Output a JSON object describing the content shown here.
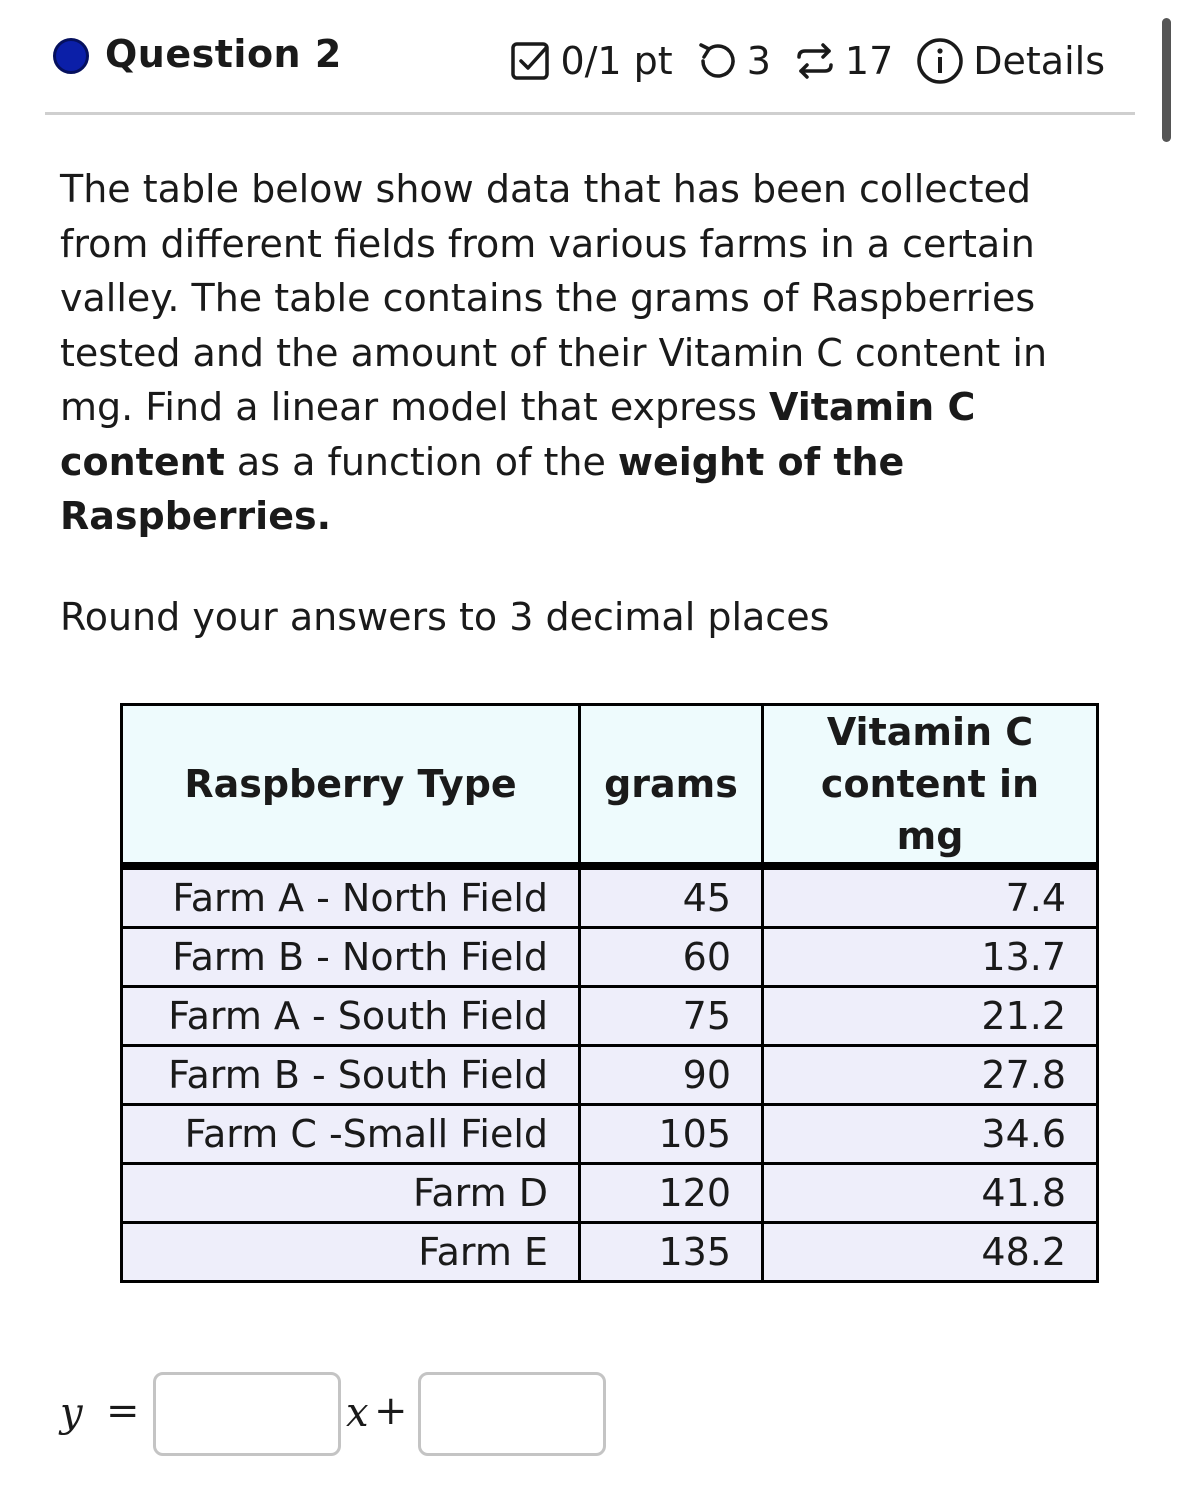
{
  "header": {
    "question_title": "Question 2",
    "points": "0/1 pt",
    "attempts": "3",
    "versions": "17",
    "details_label": "Details",
    "status_color": "#0b1fa8"
  },
  "prompt": {
    "part1": "The table below show data that has been collected from different fields from various farms in a certain valley. The table contains the grams of Raspberries tested and the amount of their Vitamin C content in mg. Find a linear model that express ",
    "bold1": "Vitamin C content",
    "part2": " as a function of the ",
    "bold2": "weight of the Raspberries.",
    "round_note": "Round your answers to 3 decimal places"
  },
  "table": {
    "headers": [
      "Raspberry Type",
      "grams",
      "Vitamin C content in mg"
    ],
    "rows": [
      {
        "type": "Farm A - North Field",
        "grams": "45",
        "vitc": "7.4"
      },
      {
        "type": "Farm B - North Field",
        "grams": "60",
        "vitc": "13.7"
      },
      {
        "type": "Farm A - South Field",
        "grams": "75",
        "vitc": "21.2"
      },
      {
        "type": "Farm B - South Field",
        "grams": "90",
        "vitc": "27.8"
      },
      {
        "type": "Farm C -Small Field",
        "grams": "105",
        "vitc": "34.6"
      },
      {
        "type": "Farm D",
        "grams": "120",
        "vitc": "41.8"
      },
      {
        "type": "Farm E",
        "grams": "135",
        "vitc": "48.2"
      }
    ]
  },
  "answer": {
    "y_label": "y",
    "equals": "=",
    "x_label": "x",
    "plus": "+",
    "slope_value": "",
    "intercept_value": ""
  },
  "icons": {
    "points": "checkbox-icon",
    "attempts": "retry-icon",
    "versions": "versions-icon",
    "details": "info-icon"
  }
}
